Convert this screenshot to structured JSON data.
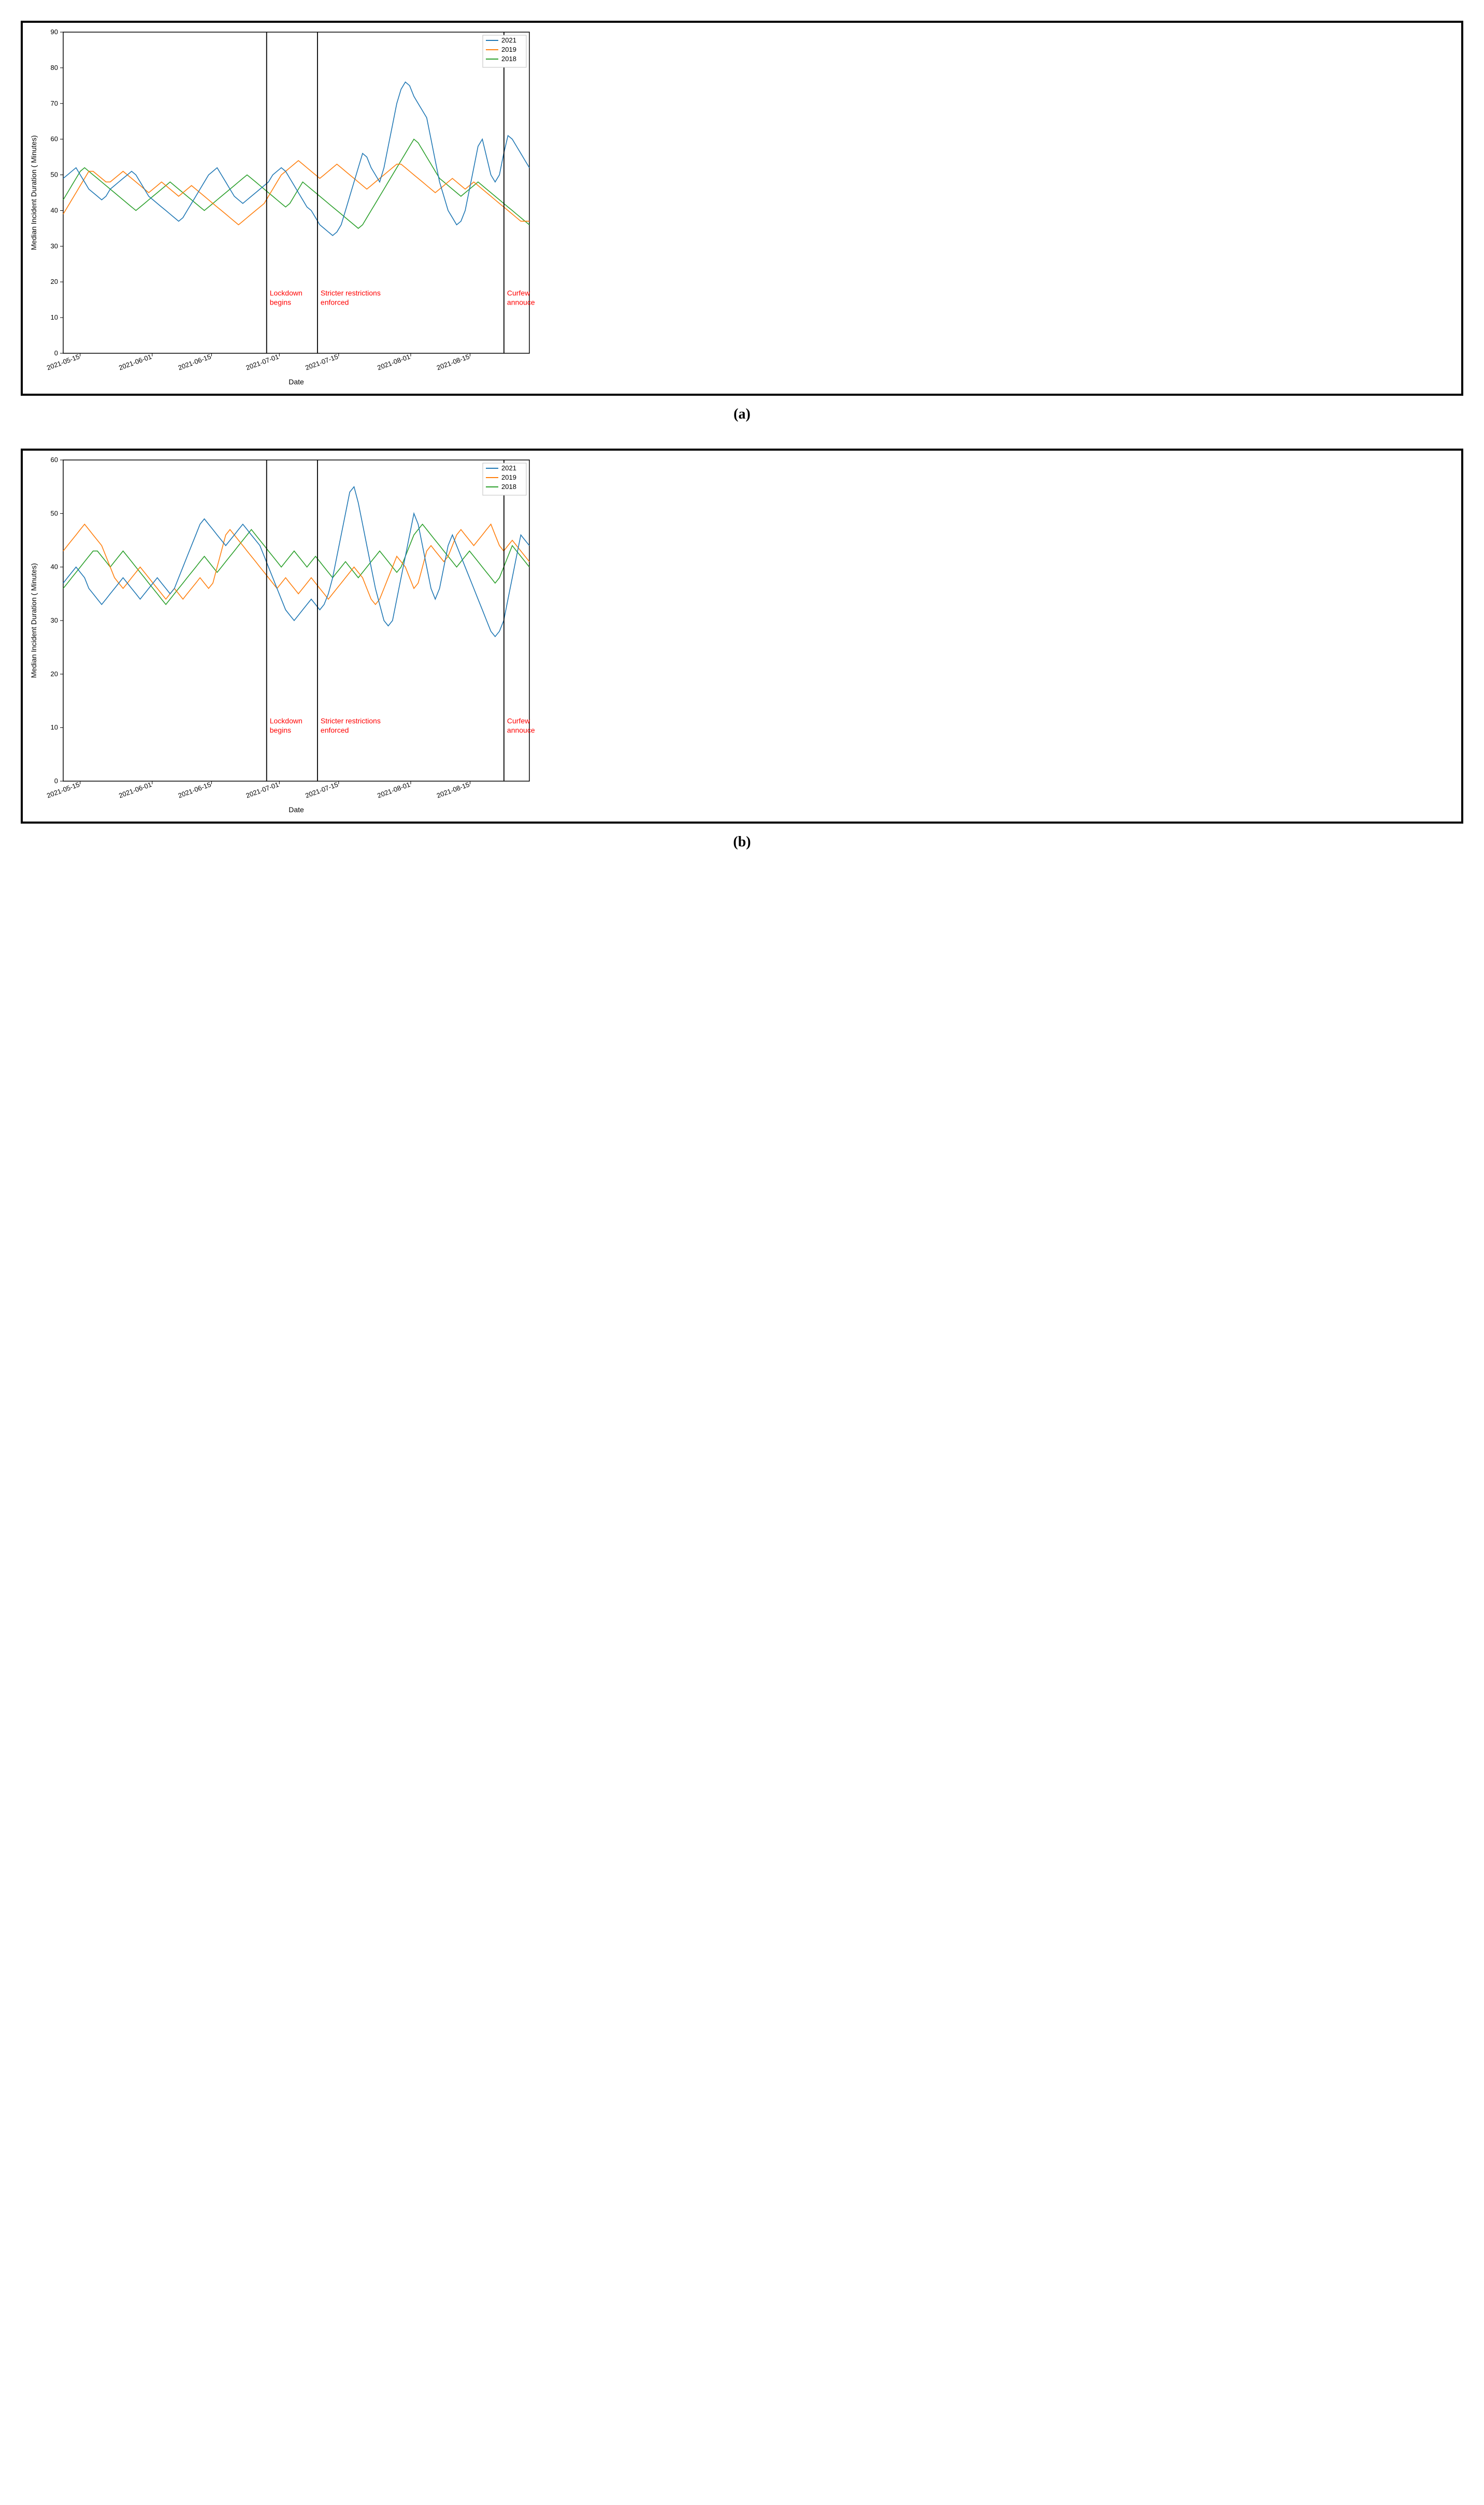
{
  "captions": {
    "a": "(a)",
    "b": "(b)"
  },
  "xlabel": "Date",
  "ylabel": "Median Incident Duration ( Minutes)",
  "legend_items": [
    {
      "label": "2021",
      "color": "#1f77b4"
    },
    {
      "label": "2019",
      "color": "#ff7f0e"
    },
    {
      "label": "2018",
      "color": "#2ca02c"
    }
  ],
  "axis_color": "#000000",
  "background_color": "#ffffff",
  "vline_color": "#000000",
  "vline_label_color": "#ff0000",
  "font_family": "sans-serif",
  "tick_fontsize": 13,
  "label_fontsize": 14,
  "line_width": 1.6,
  "x_domain": {
    "min": 0,
    "max": 110
  },
  "x_ticks": [
    {
      "pos": 4,
      "label": "2021-05-15"
    },
    {
      "pos": 21,
      "label": "2021-06-01"
    },
    {
      "pos": 35,
      "label": "2021-06-15"
    },
    {
      "pos": 51,
      "label": "2021-07-01"
    },
    {
      "pos": 65,
      "label": "2021-07-15"
    },
    {
      "pos": 82,
      "label": "2021-08-01"
    },
    {
      "pos": 96,
      "label": "2021-08-15"
    }
  ],
  "vlines": [
    {
      "x": 48,
      "label_lines": [
        "Lockdown",
        "begins"
      ]
    },
    {
      "x": 60,
      "label_lines": [
        "Stricter restrictions",
        "enforced"
      ]
    },
    {
      "x": 104,
      "label_lines": [
        "Curfew",
        "annouced"
      ]
    }
  ],
  "panel_a": {
    "ylim": [
      0,
      90
    ],
    "ytick_step": 10,
    "series": {
      "2021": [
        49,
        50,
        51,
        52,
        50,
        48,
        46,
        45,
        44,
        43,
        44,
        46,
        47,
        48,
        49,
        50,
        51,
        50,
        48,
        46,
        44,
        43,
        42,
        41,
        40,
        39,
        38,
        37,
        38,
        40,
        42,
        44,
        46,
        48,
        50,
        51,
        52,
        50,
        48,
        46,
        44,
        43,
        42,
        43,
        44,
        45,
        46,
        47,
        48,
        50,
        51,
        52,
        51,
        49,
        47,
        45,
        43,
        41,
        40,
        38,
        36,
        35,
        34,
        33,
        34,
        36,
        40,
        44,
        48,
        52,
        56,
        55,
        52,
        50,
        48,
        52,
        58,
        64,
        70,
        74,
        76,
        75,
        72,
        70,
        68,
        66,
        60,
        54,
        48,
        44,
        40,
        38,
        36,
        37,
        40,
        46,
        52,
        58,
        60,
        55,
        50,
        48,
        50,
        56,
        61,
        60,
        58,
        56,
        54,
        52
      ],
      "2019": [
        39,
        41,
        43,
        45,
        47,
        49,
        51,
        51,
        50,
        49,
        48,
        48,
        49,
        50,
        51,
        50,
        49,
        48,
        47,
        46,
        45,
        46,
        47,
        48,
        47,
        46,
        45,
        44,
        45,
        46,
        47,
        46,
        45,
        44,
        43,
        42,
        41,
        40,
        39,
        38,
        37,
        36,
        37,
        38,
        39,
        40,
        41,
        42,
        44,
        46,
        48,
        50,
        51,
        52,
        53,
        54,
        53,
        52,
        51,
        50,
        49,
        50,
        51,
        52,
        53,
        52,
        51,
        50,
        49,
        48,
        47,
        46,
        47,
        48,
        49,
        50,
        51,
        52,
        53,
        53,
        52,
        51,
        50,
        49,
        48,
        47,
        46,
        45,
        46,
        47,
        48,
        49,
        48,
        47,
        46,
        47,
        48,
        47,
        46,
        45,
        44,
        43,
        42,
        41,
        40,
        39,
        38,
        37,
        37,
        37
      ],
      "2018": [
        43,
        45,
        47,
        49,
        51,
        52,
        51,
        50,
        49,
        48,
        47,
        46,
        45,
        44,
        43,
        42,
        41,
        40,
        41,
        42,
        43,
        44,
        45,
        46,
        47,
        48,
        47,
        46,
        45,
        44,
        43,
        42,
        41,
        40,
        41,
        42,
        43,
        44,
        45,
        46,
        47,
        48,
        49,
        50,
        49,
        48,
        47,
        46,
        45,
        44,
        43,
        42,
        41,
        42,
        44,
        46,
        48,
        47,
        46,
        45,
        44,
        43,
        42,
        41,
        40,
        39,
        38,
        37,
        36,
        35,
        36,
        38,
        40,
        42,
        44,
        46,
        48,
        50,
        52,
        54,
        56,
        58,
        60,
        59,
        57,
        55,
        53,
        51,
        49,
        48,
        47,
        46,
        45,
        44,
        45,
        46,
        47,
        48,
        47,
        46,
        45,
        44,
        43,
        42,
        41,
        40,
        39,
        38,
        37,
        36
      ]
    }
  },
  "panel_b": {
    "ylim": [
      0,
      60
    ],
    "ytick_step": 10,
    "series": {
      "2021": [
        37,
        38,
        39,
        40,
        39,
        38,
        36,
        35,
        34,
        33,
        34,
        35,
        36,
        37,
        38,
        37,
        36,
        35,
        34,
        35,
        36,
        37,
        38,
        37,
        36,
        35,
        36,
        38,
        40,
        42,
        44,
        46,
        48,
        49,
        48,
        47,
        46,
        45,
        44,
        45,
        46,
        47,
        48,
        47,
        46,
        45,
        44,
        42,
        40,
        38,
        36,
        34,
        32,
        31,
        30,
        31,
        32,
        33,
        34,
        33,
        32,
        33,
        35,
        38,
        42,
        46,
        50,
        54,
        55,
        52,
        48,
        44,
        40,
        36,
        33,
        30,
        29,
        30,
        34,
        38,
        42,
        46,
        50,
        48,
        44,
        40,
        36,
        34,
        36,
        40,
        44,
        46,
        44,
        42,
        40,
        38,
        36,
        34,
        32,
        30,
        28,
        27,
        28,
        30,
        34,
        38,
        42,
        46,
        45,
        44
      ],
      "2019": [
        43,
        44,
        45,
        46,
        47,
        48,
        47,
        46,
        45,
        44,
        42,
        40,
        38,
        37,
        36,
        37,
        38,
        39,
        40,
        39,
        38,
        37,
        36,
        35,
        34,
        35,
        36,
        35,
        34,
        35,
        36,
        37,
        38,
        37,
        36,
        37,
        40,
        43,
        46,
        47,
        46,
        45,
        44,
        43,
        42,
        41,
        40,
        39,
        38,
        37,
        36,
        37,
        38,
        37,
        36,
        35,
        36,
        37,
        38,
        37,
        36,
        35,
        34,
        35,
        36,
        37,
        38,
        39,
        40,
        39,
        38,
        36,
        34,
        33,
        34,
        36,
        38,
        40,
        42,
        41,
        40,
        38,
        36,
        37,
        40,
        43,
        44,
        43,
        42,
        41,
        42,
        44,
        46,
        47,
        46,
        45,
        44,
        45,
        46,
        47,
        48,
        46,
        44,
        43,
        44,
        45,
        44,
        43,
        42,
        41
      ],
      "2018": [
        36,
        37,
        38,
        39,
        40,
        41,
        42,
        43,
        43,
        42,
        41,
        40,
        41,
        42,
        43,
        42,
        41,
        40,
        39,
        38,
        37,
        36,
        35,
        34,
        33,
        34,
        35,
        36,
        37,
        38,
        39,
        40,
        41,
        42,
        41,
        40,
        39,
        40,
        41,
        42,
        43,
        44,
        45,
        46,
        47,
        46,
        45,
        44,
        43,
        42,
        41,
        40,
        41,
        42,
        43,
        42,
        41,
        40,
        41,
        42,
        41,
        40,
        39,
        38,
        39,
        40,
        41,
        40,
        39,
        38,
        39,
        40,
        41,
        42,
        43,
        42,
        41,
        40,
        39,
        40,
        42,
        44,
        46,
        47,
        48,
        47,
        46,
        45,
        44,
        43,
        42,
        41,
        40,
        41,
        42,
        43,
        42,
        41,
        40,
        39,
        38,
        37,
        38,
        40,
        42,
        44,
        43,
        42,
        41,
        40
      ]
    }
  }
}
